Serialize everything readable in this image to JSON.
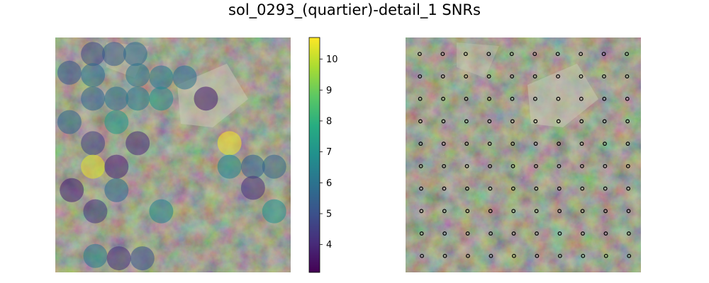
{
  "figure": {
    "title": "sol_0293_(quartier)-detail_1 SNRs"
  },
  "chart_data": [
    {
      "type": "scatter",
      "title": "",
      "xlabel": "",
      "ylabel": "",
      "grid": false,
      "axes_visible": false,
      "background": "rock surface image",
      "colorbar": {
        "colormap": "viridis",
        "range": [
          3.1,
          10.7
        ],
        "ticks": [
          4,
          5,
          6,
          7,
          8,
          9,
          10
        ],
        "tick_labels": [
          "4",
          "5",
          "6",
          "7",
          "8",
          "9",
          "10"
        ]
      },
      "marker_alpha": 0.55,
      "points": [
        {
          "x": 0.16,
          "y": 0.93,
          "snr": 4.8
        },
        {
          "x": 0.25,
          "y": 0.93,
          "snr": 5.3
        },
        {
          "x": 0.34,
          "y": 0.93,
          "snr": 5.7
        },
        {
          "x": 0.06,
          "y": 0.85,
          "snr": 5.2
        },
        {
          "x": 0.16,
          "y": 0.84,
          "snr": 5.8
        },
        {
          "x": 0.35,
          "y": 0.84,
          "snr": 6.0
        },
        {
          "x": 0.45,
          "y": 0.83,
          "snr": 6.2
        },
        {
          "x": 0.55,
          "y": 0.83,
          "snr": 6.0
        },
        {
          "x": 0.16,
          "y": 0.74,
          "snr": 5.6
        },
        {
          "x": 0.26,
          "y": 0.74,
          "snr": 5.9
        },
        {
          "x": 0.35,
          "y": 0.74,
          "snr": 6.3
        },
        {
          "x": 0.45,
          "y": 0.74,
          "snr": 6.8
        },
        {
          "x": 0.64,
          "y": 0.74,
          "snr": 3.7
        },
        {
          "x": 0.26,
          "y": 0.64,
          "snr": 7.2
        },
        {
          "x": 0.06,
          "y": 0.64,
          "snr": 5.5
        },
        {
          "x": 0.16,
          "y": 0.55,
          "snr": 4.6
        },
        {
          "x": 0.35,
          "y": 0.55,
          "snr": 4.0
        },
        {
          "x": 0.74,
          "y": 0.55,
          "snr": 10.6
        },
        {
          "x": 0.16,
          "y": 0.45,
          "snr": 10.4
        },
        {
          "x": 0.26,
          "y": 0.45,
          "snr": 3.9
        },
        {
          "x": 0.74,
          "y": 0.45,
          "snr": 6.4
        },
        {
          "x": 0.84,
          "y": 0.45,
          "snr": 5.4
        },
        {
          "x": 0.93,
          "y": 0.45,
          "snr": 5.5
        },
        {
          "x": 0.07,
          "y": 0.35,
          "snr": 3.8
        },
        {
          "x": 0.26,
          "y": 0.35,
          "snr": 5.8
        },
        {
          "x": 0.84,
          "y": 0.36,
          "snr": 4.2
        },
        {
          "x": 0.17,
          "y": 0.26,
          "snr": 4.3
        },
        {
          "x": 0.45,
          "y": 0.26,
          "snr": 6.4
        },
        {
          "x": 0.93,
          "y": 0.26,
          "snr": 6.9
        },
        {
          "x": 0.17,
          "y": 0.07,
          "snr": 6.1
        },
        {
          "x": 0.27,
          "y": 0.06,
          "snr": 4.1
        },
        {
          "x": 0.37,
          "y": 0.06,
          "snr": 5.0
        }
      ]
    },
    {
      "type": "scatter",
      "title": "",
      "xlabel": "",
      "ylabel": "",
      "grid": false,
      "axes_visible": false,
      "background": "rock surface image",
      "marker": "hollow circle",
      "marker_color": "#000000",
      "grid_points": {
        "columns": 10,
        "rows": 10,
        "x_start": 0.06,
        "x_end": 0.94,
        "y_start": 0.93,
        "y_end": 0.07
      }
    }
  ]
}
